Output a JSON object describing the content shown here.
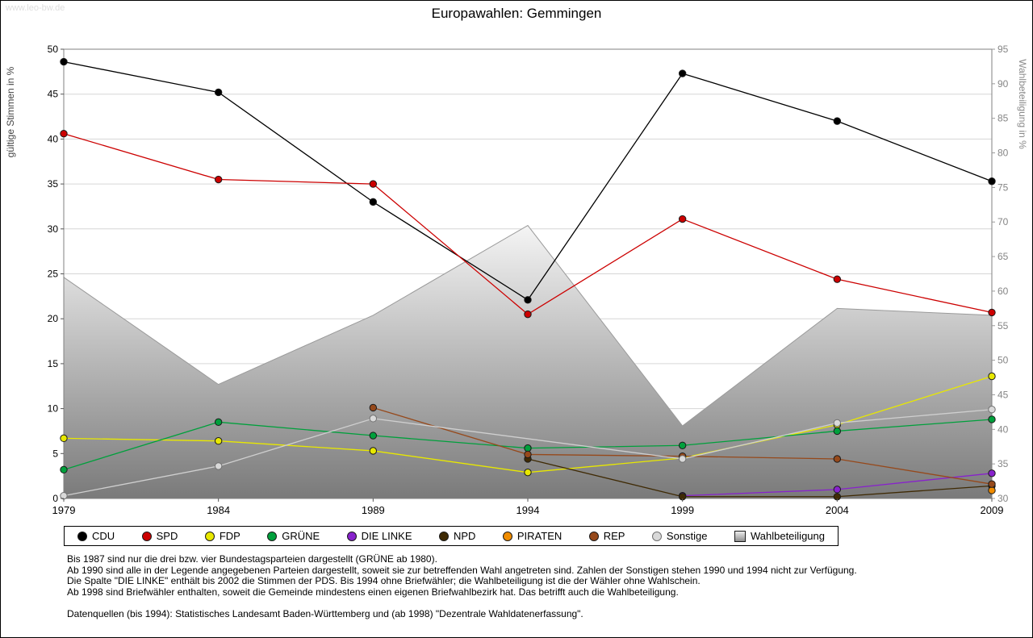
{
  "watermark": "www.leo-bw.de",
  "title": "Europawahlen: Gemmingen",
  "axes": {
    "left_label": "gültige Stimmen in %",
    "right_label": "Wahlbeteiligung in %",
    "left_min": 0,
    "left_max": 50,
    "left_step": 5,
    "right_min": 30,
    "right_max": 95,
    "right_step": 5
  },
  "chart_data": {
    "type": "line",
    "x": [
      "1979",
      "1984",
      "1989",
      "1994",
      "1999",
      "2004",
      "2009"
    ],
    "grid": "horizontal",
    "legend_position": "bottom",
    "xlabel": "",
    "ylabel_left": "gültige Stimmen in %",
    "ylabel_right": "Wahlbeteiligung in %",
    "series": [
      {
        "name": "CDU",
        "color": "#000000",
        "values": [
          48.6,
          45.2,
          33.0,
          22.1,
          47.3,
          42.0,
          35.3
        ]
      },
      {
        "name": "SPD",
        "color": "#cc0000",
        "values": [
          40.6,
          35.5,
          35.0,
          20.5,
          31.1,
          24.4,
          20.7
        ]
      },
      {
        "name": "FDP",
        "color": "#e8e800",
        "values": [
          6.7,
          6.4,
          5.3,
          2.9,
          4.5,
          8.2,
          13.6
        ]
      },
      {
        "name": "GRÜNE",
        "color": "#00a03c",
        "values": [
          3.2,
          8.5,
          7.0,
          5.6,
          5.9,
          7.5,
          8.8
        ]
      },
      {
        "name": "DIE LINKE",
        "color": "#8822cc",
        "values": [
          null,
          null,
          null,
          null,
          0.3,
          1.0,
          2.8
        ]
      },
      {
        "name": "NPD",
        "color": "#3f2a04",
        "values": [
          null,
          null,
          null,
          4.4,
          0.2,
          0.2,
          1.4
        ]
      },
      {
        "name": "PIRATEN",
        "color": "#f08c00",
        "values": [
          null,
          null,
          null,
          null,
          null,
          null,
          0.9
        ]
      },
      {
        "name": "REP",
        "color": "#96491b",
        "values": [
          null,
          null,
          10.1,
          4.9,
          4.7,
          4.4,
          1.6
        ]
      },
      {
        "name": "Sonstige",
        "color": "#d9d9d9",
        "marker_outline": "#707070",
        "line_color": "#cfcfcf",
        "values": [
          0.3,
          3.6,
          8.9,
          null,
          4.4,
          8.4,
          9.9
        ]
      }
    ],
    "area_series": {
      "name": "Wahlbeteiligung",
      "axis": "right",
      "values": [
        62.0,
        46.5,
        56.5,
        69.5,
        40.5,
        57.5,
        56.5
      ],
      "fill_top": "#fbfbfb",
      "fill_bottom": "#7a7a7a",
      "outline": "#9a9a9a"
    }
  },
  "footnotes": [
    "Bis 1987 sind nur die drei bzw. vier Bundestagsparteien dargestellt (GRÜNE ab 1980).",
    "Ab 1990 sind alle in der Legende angegebenen Parteien dargestellt, soweit sie zur betreffenden Wahl angetreten sind. Zahlen der Sonstigen stehen 1990 und 1994 nicht zur Verfügung.",
    "Die Spalte \"DIE LINKE\" enthält bis 2002 die Stimmen der PDS. Bis 1994 ohne Briefwähler; die Wahlbeteiligung ist die der Wähler ohne Wahlschein.",
    "Ab 1998 sind Briefwähler enthalten, soweit die Gemeinde mindestens einen eigenen Briefwahlbezirk hat. Das betrifft auch die Wahlbeteiligung."
  ],
  "source": "Datenquellen (bis 1994): Statistisches Landesamt Baden-Württemberg und (ab 1998) \"Dezentrale Wahldatenerfassung\"."
}
